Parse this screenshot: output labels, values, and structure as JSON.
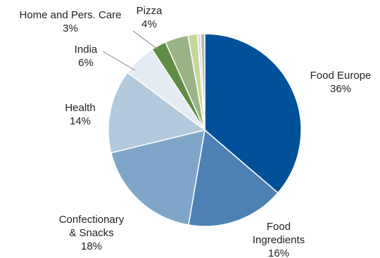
{
  "chart_data": {
    "type": "pie",
    "title": "",
    "start_angle_deg": 0,
    "direction": "clockwise",
    "slices": [
      {
        "label_lines": [
          "Food Europe"
        ],
        "percent_label": "36%",
        "value": 36.3,
        "color": "#00509a"
      },
      {
        "label_lines": [
          "Food",
          "Ingredients"
        ],
        "percent_label": "16%",
        "value": 16.4,
        "color": "#4d81b4"
      },
      {
        "label_lines": [
          "Confectionary",
          "& Snacks"
        ],
        "percent_label": "18%",
        "value": 18.5,
        "color": "#7ea6c8"
      },
      {
        "label_lines": [
          "Health"
        ],
        "percent_label": "14%",
        "value": 14.0,
        "color": "#b3c9dc"
      },
      {
        "label_lines": [
          "India"
        ],
        "percent_label": "6%",
        "value": 5.6,
        "color": "#e4ebf2"
      },
      {
        "label_lines": [
          "Home and Pers. Care"
        ],
        "percent_label": "3%",
        "value": 2.5,
        "color": "#5e8c45"
      },
      {
        "label_lines": [
          "Pizza"
        ],
        "percent_label": "4%",
        "value": 3.9,
        "color": "#9ab486"
      },
      {
        "label_lines": [],
        "percent_label": "",
        "value": 1.6,
        "color": "#c7d79a"
      },
      {
        "label_lines": [],
        "percent_label": "",
        "value": 0.5,
        "color": "#d8d8d8"
      },
      {
        "label_lines": [],
        "percent_label": "",
        "value": 0.7,
        "color": "#b5b5b5"
      }
    ]
  }
}
